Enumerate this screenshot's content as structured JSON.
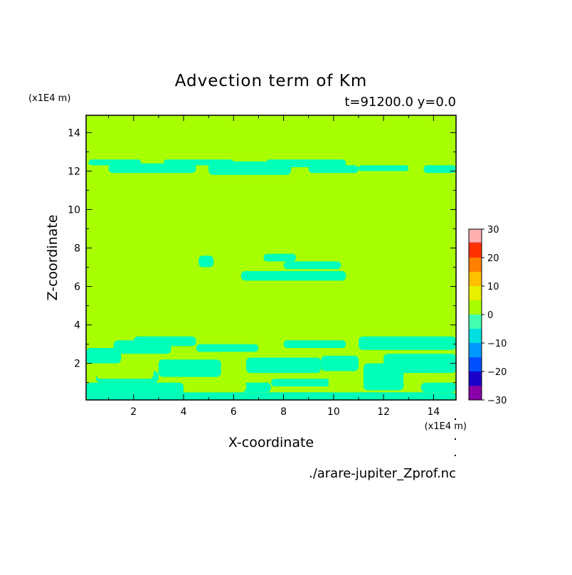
{
  "chart_data": {
    "type": "heatmap",
    "title": "Advection term of Km",
    "subtitle": "t=91200.0 y=0.0",
    "xlabel": "X-coordinate",
    "ylabel": "Z-coordinate",
    "x_unit": "(x1E4 m)",
    "y_unit": "(x1E4 m)",
    "source_file": "./arare-jupiter_Zprof.nc",
    "xlim": [
      0.1,
      14.9
    ],
    "ylim": [
      0.1,
      14.9
    ],
    "x_ticks": [
      2,
      4,
      6,
      8,
      10,
      12,
      14
    ],
    "y_ticks": [
      2,
      4,
      6,
      8,
      10,
      12,
      14
    ],
    "grid": false,
    "legend_position": "right",
    "colorbar": {
      "levels": [
        -30,
        -25,
        -20,
        -15,
        -10,
        -5,
        0,
        5,
        10,
        15,
        20,
        25,
        30
      ],
      "labels": [
        "30",
        "20",
        "10",
        "0",
        "−10",
        "−20",
        "−30"
      ],
      "label_values": [
        30,
        20,
        10,
        0,
        -10,
        -20,
        -30
      ],
      "colors": [
        "#8a00a8",
        "#1a00c8",
        "#0050ff",
        "#0098ff",
        "#00e0e0",
        "#40ffb0",
        "#a8ff00",
        "#e8f000",
        "#ffc000",
        "#ff8000",
        "#ff3000",
        "#e84040",
        "#ffb0b0"
      ]
    },
    "background_value_range": [
      0,
      5
    ],
    "negative_regions": [
      {
        "value_range": [
          -5,
          0
        ],
        "z_range": [
          0.1,
          3.4
        ],
        "description_value": "-5 to 0"
      },
      {
        "value_range": [
          -5,
          0
        ],
        "z_range": [
          11.6,
          12.6
        ],
        "description_value": "-5 to 0"
      },
      {
        "value_range": [
          -5,
          0
        ],
        "z_range": [
          6.3,
          7.7
        ],
        "description_value": "-5 to 0"
      }
    ]
  }
}
